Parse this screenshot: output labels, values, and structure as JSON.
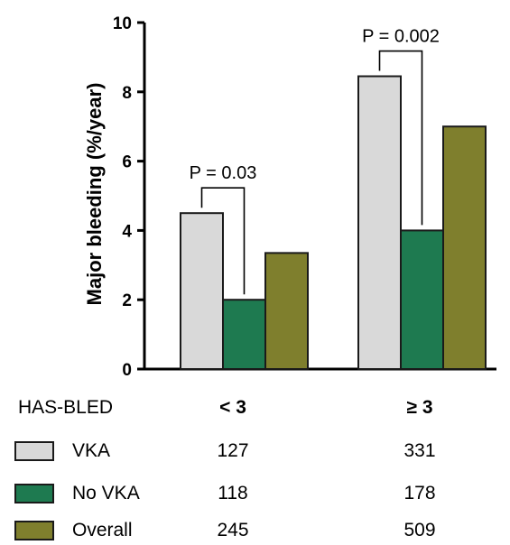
{
  "chart_data": {
    "type": "bar",
    "categories": [
      "< 3",
      "≥ 3"
    ],
    "series": [
      {
        "name": "VKA",
        "values": [
          4.5,
          8.45
        ],
        "color": "#d9d9d9"
      },
      {
        "name": "No VKA",
        "values": [
          2.0,
          4.0
        ],
        "color": "#1e7a50"
      },
      {
        "name": "Overall",
        "values": [
          3.35,
          7.0
        ],
        "color": "#7f7f2d"
      }
    ],
    "ylabel": "Major bleeding (%/year)",
    "ylim": [
      0,
      10
    ],
    "yticks": [
      "0",
      "2",
      "4",
      "6",
      "8",
      "10"
    ],
    "grid": false,
    "annotations": [
      {
        "category": "< 3",
        "from_series": "VKA",
        "to_series": "No VKA",
        "label": "P = 0.03"
      },
      {
        "category": "≥ 3",
        "from_series": "VKA",
        "to_series": "No VKA",
        "label": "P = 0.002"
      }
    ]
  },
  "table": {
    "header": "HAS-BLED",
    "groups": [
      "< 3",
      "≥ 3"
    ],
    "rows": [
      {
        "label": "VKA",
        "counts": [
          "127",
          "331"
        ],
        "color": "#d9d9d9"
      },
      {
        "label": "No VKA",
        "counts": [
          "118",
          "178"
        ],
        "color": "#1e7a50"
      },
      {
        "label": "Overall",
        "counts": [
          "245",
          "509"
        ],
        "color": "#7f7f2d"
      }
    ]
  }
}
